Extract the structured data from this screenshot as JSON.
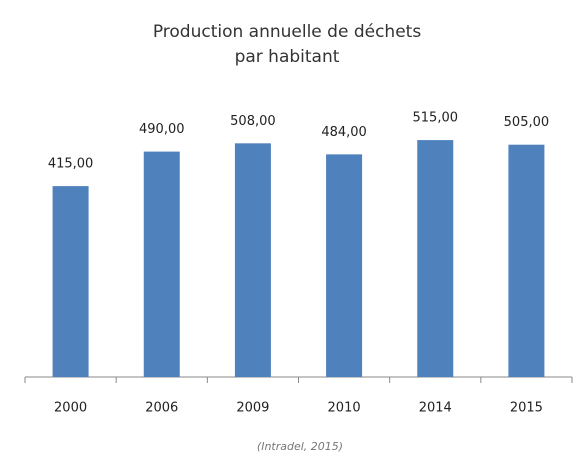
{
  "chart_data": {
    "type": "bar",
    "title": "Production annuelle de déchets par habitant",
    "categories": [
      "2000",
      "2006",
      "2009",
      "2010",
      "2014",
      "2015"
    ],
    "values": [
      415,
      490,
      508,
      484,
      515,
      505
    ],
    "value_labels": [
      "415,00",
      "490,00",
      "508,00",
      "484,00",
      "515,00",
      "505,00"
    ],
    "color": "#4f81bd",
    "ylim": [
      0,
      550
    ],
    "grid": false,
    "source": "(Intradel, 2015)"
  }
}
